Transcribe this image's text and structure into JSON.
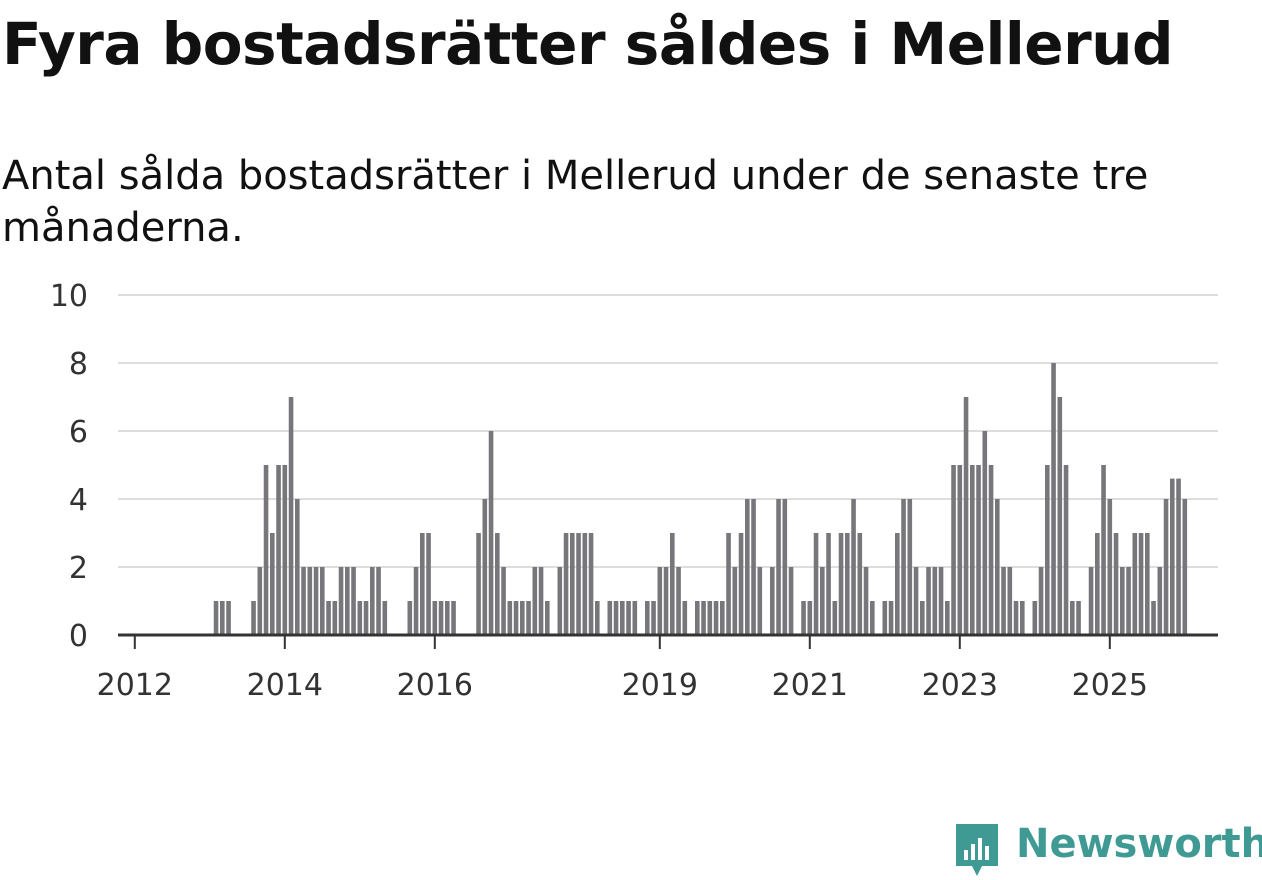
{
  "title": "Fyra bostadsrätter såldes i Mellerud",
  "subtitle": "Antal sålda bostadsrätter i Mellerud under de senaste tre månaderna.",
  "brand": "Newsworthy",
  "colors": {
    "bar": "#77767b",
    "highlight": "#2aa198",
    "grid": "#dddddd",
    "brand": "#3f9a94"
  },
  "chart_data": {
    "type": "bar",
    "ylim": [
      0,
      10
    ],
    "yticks": [
      0,
      2,
      4,
      6,
      8,
      10
    ],
    "x_start": "2011-11",
    "xticks": [
      {
        "label": "2012",
        "month": "2012-01"
      },
      {
        "label": "2014",
        "month": "2014-01"
      },
      {
        "label": "2016",
        "month": "2016-01"
      },
      {
        "label": "2019",
        "month": "2019-01"
      },
      {
        "label": "2021",
        "month": "2021-01"
      },
      {
        "label": "2023",
        "month": "2023-01"
      },
      {
        "label": "2025",
        "month": "2025-01"
      }
    ],
    "values": [
      0,
      0,
      0,
      0,
      0,
      0,
      0,
      0,
      0,
      0,
      0,
      0,
      0,
      0,
      0,
      1,
      1,
      1,
      0,
      0,
      0,
      1,
      2,
      5,
      3,
      5,
      5,
      7,
      4,
      2,
      2,
      2,
      2,
      1,
      1,
      2,
      2,
      2,
      1,
      1,
      2,
      2,
      1,
      0,
      0,
      0,
      1,
      2,
      3,
      3,
      1,
      1,
      1,
      1,
      0,
      0,
      0,
      3,
      4,
      6,
      3,
      2,
      1,
      1,
      1,
      1,
      2,
      2,
      1,
      0,
      2,
      3,
      3,
      3,
      3,
      3,
      1,
      0,
      1,
      1,
      1,
      1,
      1,
      0,
      1,
      1,
      2,
      2,
      3,
      2,
      1,
      0,
      1,
      1,
      1,
      1,
      1,
      3,
      2,
      3,
      4,
      4,
      2,
      0,
      2,
      4,
      4,
      2,
      0,
      1,
      1,
      3,
      2,
      3,
      1,
      3,
      3,
      4,
      3,
      2,
      1,
      0,
      1,
      1,
      3,
      4,
      4,
      2,
      1,
      2,
      2,
      2,
      1,
      5,
      5,
      7,
      5,
      5,
      6,
      5,
      4,
      2,
      2,
      1,
      1,
      0,
      1,
      2,
      5,
      8,
      7,
      5,
      1,
      1,
      0,
      2,
      3,
      5,
      4,
      3,
      2,
      2,
      3,
      3,
      3,
      1,
      2,
      4,
      4.6,
      4.6,
      4
    ],
    "highlight": {
      "index": 173,
      "label": "4"
    }
  }
}
